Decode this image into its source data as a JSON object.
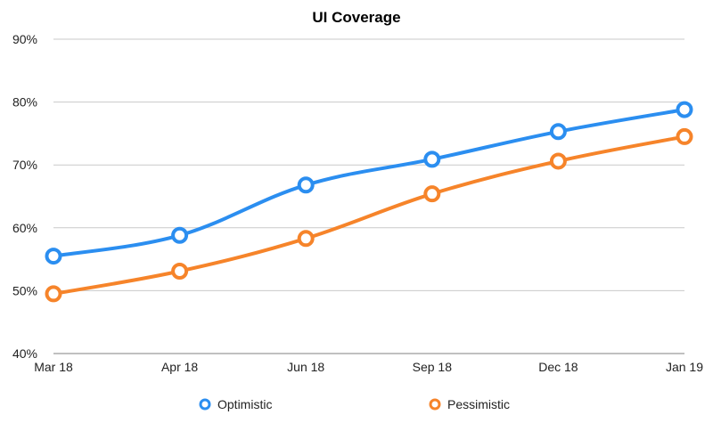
{
  "chart_data": {
    "type": "line",
    "title": "UI Coverage",
    "xlabel": "",
    "ylabel": "",
    "categories": [
      "Mar 18",
      "Apr 18",
      "Jun 18",
      "Sep 18",
      "Dec 18",
      "Jan 19"
    ],
    "series": [
      {
        "name": "Optimistic",
        "color": "#2b8ef0",
        "values": [
          55.5,
          58.8,
          66.8,
          70.9,
          75.3,
          78.8
        ]
      },
      {
        "name": "Pessimistic",
        "color": "#f6842a",
        "values": [
          49.5,
          53.1,
          58.3,
          65.4,
          70.6,
          74.5
        ]
      }
    ],
    "ylim": [
      40,
      90
    ],
    "yticks": [
      "40%",
      "50%",
      "60%",
      "70%",
      "80%",
      "90%"
    ],
    "grid": true,
    "legend_position": "bottom",
    "smooth": true
  }
}
